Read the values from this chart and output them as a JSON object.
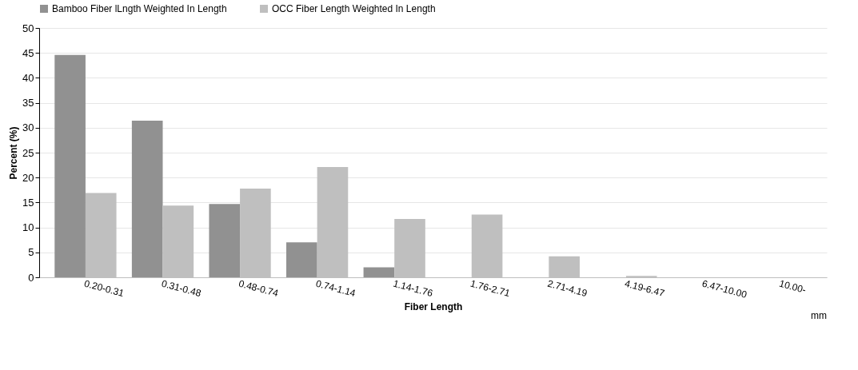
{
  "chart_data": {
    "type": "bar",
    "xlabel": "Fiber Length",
    "ylabel": "Percent (%)",
    "annotations": [
      "mm"
    ],
    "categories": [
      "0.20-0.31",
      "0.31-0.48",
      "0.48-0.74",
      "0.74-1.14",
      "1.14-1.76",
      "1.76-2.71",
      "2.71-4.19",
      "4.19-6.47",
      "6.47-10.00",
      "10.00-"
    ],
    "series": [
      {
        "name": "Bamboo Fiber lLngth Weighted In Length",
        "color": "#919191",
        "values": [
          44.6,
          31.4,
          14.7,
          7.0,
          2.0,
          0,
          0,
          0,
          0,
          0
        ]
      },
      {
        "name": "OCC Fiber Length Weighted In Length",
        "color": "#bfbfbf",
        "values": [
          16.9,
          14.4,
          17.8,
          22.1,
          11.7,
          12.6,
          4.2,
          0.3,
          0,
          0
        ]
      }
    ],
    "ylim": [
      0,
      50
    ],
    "yticks": [
      0,
      5,
      10,
      15,
      20,
      25,
      30,
      35,
      40,
      45,
      50
    ],
    "grid": "y",
    "legend": "top"
  }
}
